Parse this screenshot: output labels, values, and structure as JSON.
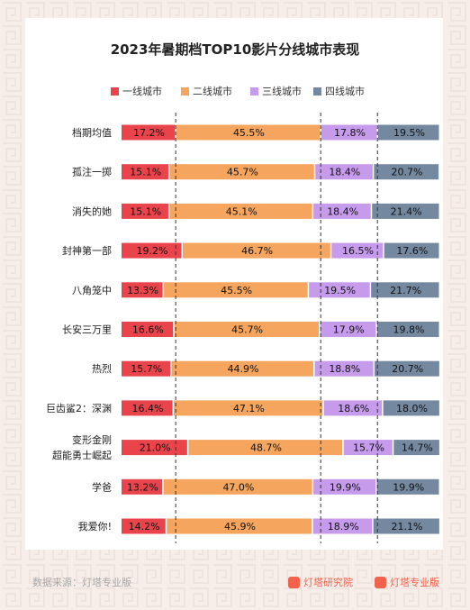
{
  "title": "2023年暑期档TOP10影片分线城市表现",
  "footer": {
    "source": "数据来源：灯塔专业版",
    "brand1": "灯塔研究院",
    "brand2": "灯塔专业版"
  },
  "colors": {
    "tier1": "#e9444b",
    "tier2": "#f5a55d",
    "tier3": "#c79bec",
    "tier4": "#7488a0"
  },
  "chart_data": {
    "type": "bar",
    "orientation": "horizontal",
    "stacked": true,
    "title": "2023年暑期档TOP10影片分线城市表现",
    "legend_position": "top",
    "unit": "%",
    "categories": [
      "档期均值",
      "孤注一掷",
      "消失的她",
      "封神第一部",
      "八角笼中",
      "长安三万里",
      "热烈",
      "巨齿鲨2：深渊",
      "变形金刚\n超能勇士崛起",
      "学爸",
      "我爱你!"
    ],
    "series": [
      {
        "name": "一线城市",
        "values": [
          17.2,
          15.1,
          15.1,
          19.2,
          13.3,
          16.6,
          15.7,
          16.4,
          21.0,
          13.2,
          14.2
        ]
      },
      {
        "name": "二线城市",
        "values": [
          45.5,
          45.7,
          45.1,
          46.7,
          45.5,
          45.7,
          44.9,
          47.1,
          48.7,
          47.0,
          45.9
        ]
      },
      {
        "name": "三线城市",
        "values": [
          17.8,
          18.4,
          18.4,
          16.5,
          19.5,
          17.9,
          18.8,
          18.6,
          15.7,
          19.9,
          18.9
        ]
      },
      {
        "name": "四线城市",
        "values": [
          19.5,
          20.7,
          21.4,
          17.6,
          21.7,
          19.8,
          20.7,
          18.0,
          14.7,
          19.9,
          21.1
        ]
      }
    ],
    "value_labels": [
      [
        "17.2%",
        "45.5%",
        "17.8%",
        "19.5%"
      ],
      [
        "15.1%",
        "45.7%",
        "18.4%",
        "20.7%"
      ],
      [
        "15.1%",
        "45.1%",
        "18.4%",
        "21.4%"
      ],
      [
        "19.2%",
        "46.7%",
        "16.5%",
        "17.6%"
      ],
      [
        "13.3%",
        "45.5%",
        "19.5%",
        "21.7%"
      ],
      [
        "16.6%",
        "45.7%",
        "17.9%",
        "19.8%"
      ],
      [
        "15.7%",
        "44.9%",
        "18.8%",
        "20.7%"
      ],
      [
        "16.4%",
        "47.1%",
        "18.6%",
        "18.0%"
      ],
      [
        "21.0%",
        "48.7%",
        "15.7%",
        "14.7%"
      ],
      [
        "13.2%",
        "47.0%",
        "19.9%",
        "19.9%"
      ],
      [
        "14.2%",
        "45.9%",
        "18.9%",
        "21.1%"
      ]
    ],
    "reference_lines": "dashed lines at 档期均值 segment boundaries",
    "xlim": [
      0,
      100
    ]
  }
}
